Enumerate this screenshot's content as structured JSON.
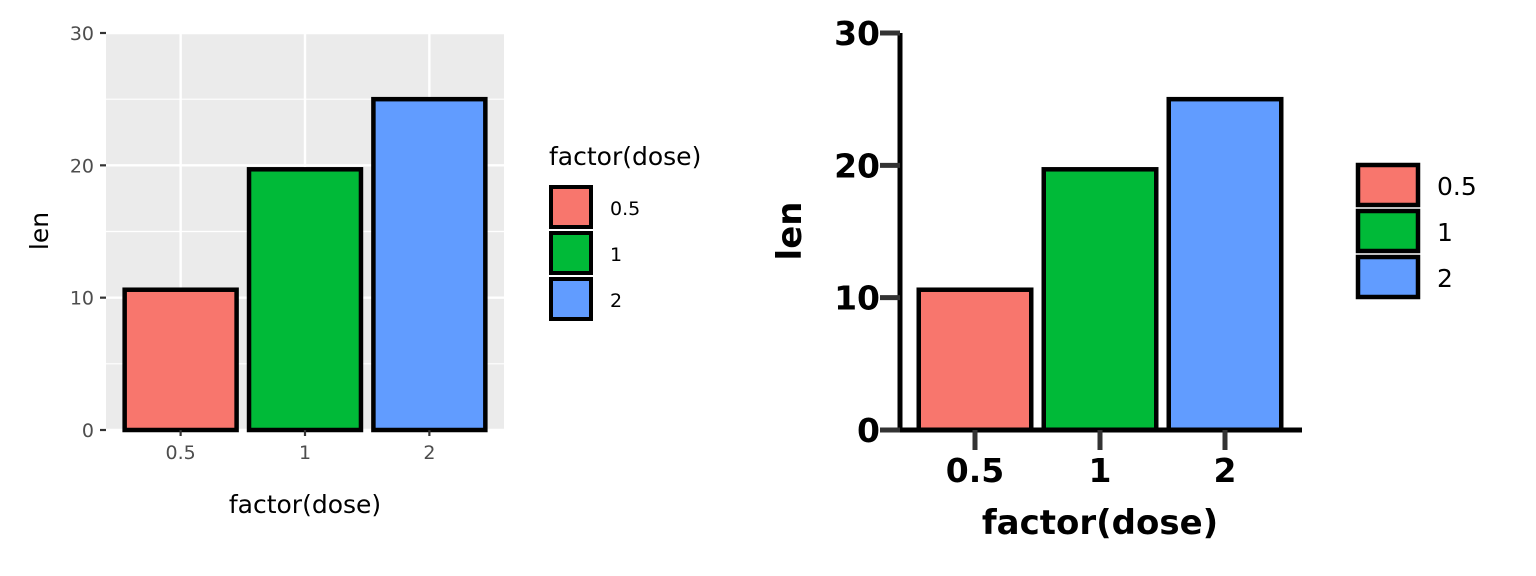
{
  "chart_data": [
    {
      "type": "bar",
      "style": "ggplot-grey",
      "categories": [
        "0.5",
        "1",
        "2"
      ],
      "values": [
        10.6,
        19.7,
        25.0
      ],
      "colors": [
        "#F8766D",
        "#00BA38",
        "#619CFF"
      ],
      "xlabel": "factor(dose)",
      "ylabel": "len",
      "ylim": [
        0,
        30
      ],
      "yticks": [
        "0",
        "10",
        "20",
        "30"
      ],
      "grid": true,
      "legend": {
        "title": "factor(dose)",
        "entries": [
          "0.5",
          "1",
          "2"
        ],
        "placement": "right"
      }
    },
    {
      "type": "bar",
      "style": "classic-bold",
      "categories": [
        "0.5",
        "1",
        "2"
      ],
      "values": [
        10.6,
        19.7,
        25.0
      ],
      "colors": [
        "#F8766D",
        "#00BA38",
        "#619CFF"
      ],
      "xlabel": "factor(dose)",
      "ylabel": "len",
      "ylim": [
        0,
        30
      ],
      "yticks": [
        "0",
        "10",
        "20",
        "30"
      ],
      "grid": false,
      "legend": {
        "title": "",
        "entries": [
          "0.5",
          "1",
          "2"
        ],
        "placement": "right"
      }
    }
  ]
}
